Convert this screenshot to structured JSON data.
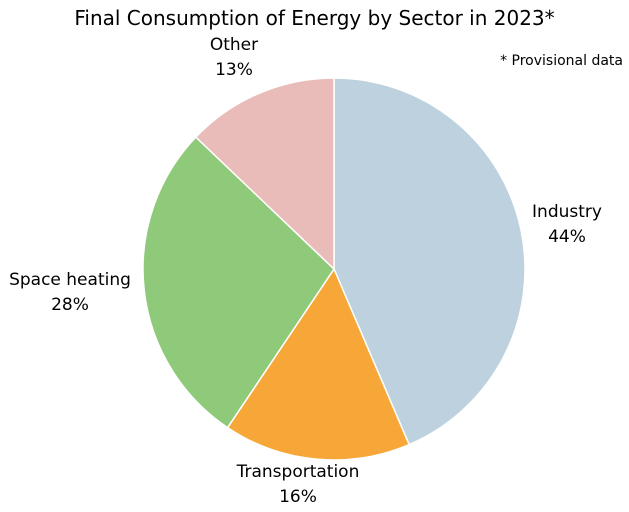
{
  "chart_data": {
    "type": "pie",
    "title": "Final Consumption of Energy by Sector in 2023*",
    "note": "* Provisional data",
    "start_angle_deg": 0,
    "direction": "clockwise",
    "slices": [
      {
        "label": "Industry",
        "value": 44,
        "display": "44%",
        "color": "#bdd1de"
      },
      {
        "label": "Transportation",
        "value": 16,
        "display": "16%",
        "color": "#f7a738"
      },
      {
        "label": "Space heating",
        "value": 28,
        "display": "28%",
        "color": "#8fc97a"
      },
      {
        "label": "Other",
        "value": 13,
        "display": "13%",
        "color": "#e9bcb9"
      }
    ],
    "slice_edge_color": "#ffffff"
  }
}
